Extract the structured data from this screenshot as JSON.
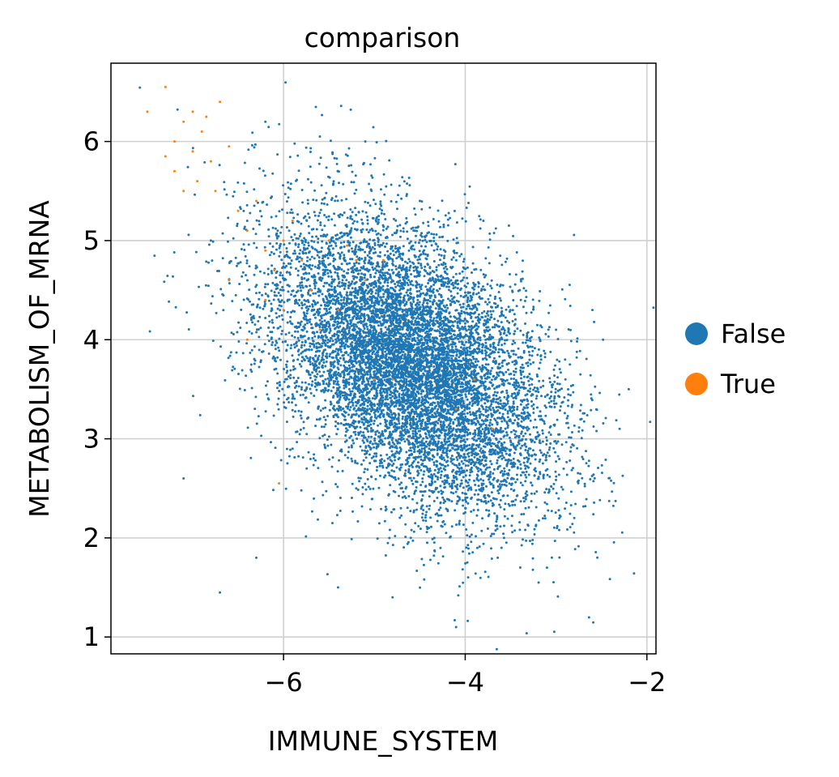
{
  "chart_data": {
    "type": "scatter",
    "title": "comparison",
    "xlabel": "IMMUNE_SYSTEM",
    "ylabel": "METABOLISM_OF_MRNA",
    "xlim": [
      -7.9,
      -1.9
    ],
    "ylim": [
      0.83,
      6.79
    ],
    "xticks": [
      -6,
      -4,
      -2
    ],
    "xtick_labels": [
      "−6",
      "−4",
      "−2"
    ],
    "yticks": [
      1,
      2,
      3,
      4,
      5,
      6
    ],
    "ytick_labels": [
      "1",
      "2",
      "3",
      "4",
      "5",
      "6"
    ],
    "grid": true,
    "legend": {
      "placement": "right"
    },
    "series": [
      {
        "name": "False",
        "color": "#1f77b4",
        "distribution": {
          "center": [
            -4.6,
            3.75
          ],
          "sd": [
            0.75,
            0.72
          ],
          "correlation": -0.45
        },
        "points": [
          [
            -5.0,
            3.8
          ],
          [
            -4.5,
            3.5
          ],
          [
            -4.2,
            3.4
          ],
          [
            -5.3,
            4.4
          ],
          [
            -3.8,
            3.3
          ],
          [
            -4.8,
            4.1
          ],
          [
            -5.8,
            5.0
          ],
          [
            -6.4,
            5.2
          ],
          [
            -6.8,
            5.0
          ],
          [
            -3.2,
            3.5
          ],
          [
            -2.9,
            3.8
          ],
          [
            -2.6,
            4.3
          ],
          [
            -2.2,
            3.5
          ],
          [
            -2.3,
            3.1
          ],
          [
            -2.8,
            2.2
          ],
          [
            -3.1,
            1.7
          ],
          [
            -3.6,
            1.9
          ],
          [
            -4.1,
            1.1
          ],
          [
            -4.8,
            1.4
          ],
          [
            -5.4,
            1.5
          ],
          [
            -6.3,
            1.8
          ],
          [
            -6.7,
            1.45
          ],
          [
            -7.1,
            2.6
          ],
          [
            -5.6,
            6.05
          ],
          [
            -5.1,
            6.0
          ],
          [
            -6.2,
            6.2
          ],
          [
            -5.4,
            5.7
          ],
          [
            -4.5,
            5.4
          ],
          [
            -3.8,
            5.2
          ],
          [
            -3.4,
            4.5
          ],
          [
            -3.0,
            4.1
          ],
          [
            -3.3,
            2.8
          ],
          [
            -4.0,
            2.3
          ],
          [
            -4.6,
            2.0
          ],
          [
            -5.2,
            2.5
          ],
          [
            -5.9,
            2.9
          ],
          [
            -6.1,
            3.7
          ],
          [
            -6.0,
            4.5
          ],
          [
            -4.4,
            4.6
          ],
          [
            -3.6,
            3.9
          ]
        ]
      },
      {
        "name": "True",
        "color": "#ff7f0e",
        "points": [
          [
            -7.5,
            6.3
          ],
          [
            -7.3,
            6.55
          ],
          [
            -7.2,
            6.0
          ],
          [
            -7.1,
            6.2
          ],
          [
            -7.0,
            5.9
          ],
          [
            -6.9,
            6.1
          ],
          [
            -6.8,
            5.8
          ],
          [
            -6.7,
            6.4
          ],
          [
            -7.2,
            5.7
          ],
          [
            -7.1,
            5.5
          ],
          [
            -6.95,
            5.6
          ],
          [
            -6.85,
            6.25
          ],
          [
            -7.3,
            5.85
          ],
          [
            -7.0,
            6.3
          ],
          [
            -6.6,
            5.95
          ],
          [
            -6.75,
            5.5
          ],
          [
            -6.5,
            5.3
          ],
          [
            -6.4,
            5.1
          ],
          [
            -6.3,
            5.4
          ],
          [
            -6.2,
            4.9
          ],
          [
            -6.1,
            4.7
          ],
          [
            -6.0,
            5.0
          ],
          [
            -5.9,
            5.2
          ],
          [
            -5.8,
            4.8
          ],
          [
            -5.5,
            5.0
          ],
          [
            -5.3,
            4.95
          ],
          [
            -5.2,
            4.8
          ],
          [
            -5.1,
            4.6
          ],
          [
            -4.9,
            4.8
          ],
          [
            -5.4,
            4.3
          ],
          [
            -6.2,
            4.4
          ],
          [
            -6.4,
            4.0
          ],
          [
            -6.0,
            4.3
          ],
          [
            -5.7,
            4.5
          ],
          [
            -5.6,
            4.1
          ],
          [
            -5.0,
            3.6
          ],
          [
            -4.8,
            3.6
          ],
          [
            -3.9,
            3.6
          ],
          [
            -4.1,
            3.3
          ],
          [
            -6.6,
            4.6
          ],
          [
            -6.05,
            2.55
          ],
          [
            -3.7,
            3.1
          ]
        ]
      }
    ]
  }
}
